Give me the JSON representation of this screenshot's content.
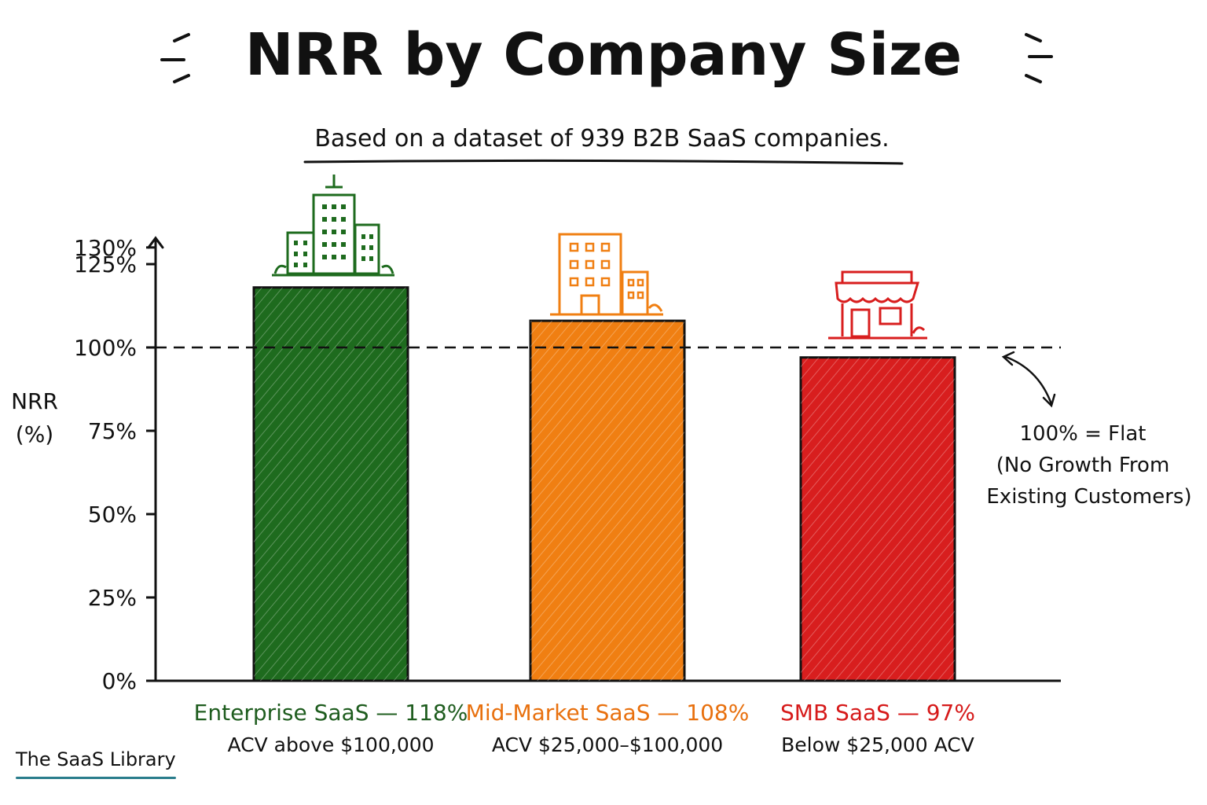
{
  "chart_data": {
    "type": "bar",
    "title": "NRR by Company Size",
    "subtitle": "Based on a dataset of 939 B2B SaaS companies.",
    "ylabel_line1": "NRR",
    "ylabel_line2": "(%)",
    "ylim": [
      0,
      130
    ],
    "yticks": [
      0,
      25,
      50,
      75,
      100,
      125,
      130
    ],
    "ytick_labels": [
      "0%",
      "25%",
      "50%",
      "75%",
      "100%",
      "125%",
      "130%"
    ],
    "reference_line": {
      "value": 100,
      "style": "dashed"
    },
    "categories": [
      "Enterprise SaaS",
      "Mid-Market SaaS",
      "SMB SaaS"
    ],
    "values": [
      118,
      108,
      97
    ],
    "category_labels": [
      "Enterprise SaaS — 118%",
      "Mid-Market SaaS — 108%",
      "SMB SaaS — 97%"
    ],
    "category_sublabels": [
      "ACV above $100,000",
      "ACV $25,000–$100,000",
      "Below $25,000 ACV"
    ],
    "bar_icons": [
      "office-towers-icon",
      "office-building-icon",
      "storefront-icon"
    ],
    "annotation": [
      "100% = Flat",
      "(No Growth From",
      "Existing Customers)"
    ],
    "grid": false
  },
  "colors": {
    "enterprise": "#1e6b1e",
    "midmarket": "#f07f12",
    "smb": "#d81e1e",
    "enterprise_label": "#1e5c1e",
    "midmarket_label": "#e8700e",
    "smb_label": "#d61a1a",
    "brand_underline": "#2a7d8c"
  },
  "brand": {
    "name": "The SaaS Library"
  }
}
